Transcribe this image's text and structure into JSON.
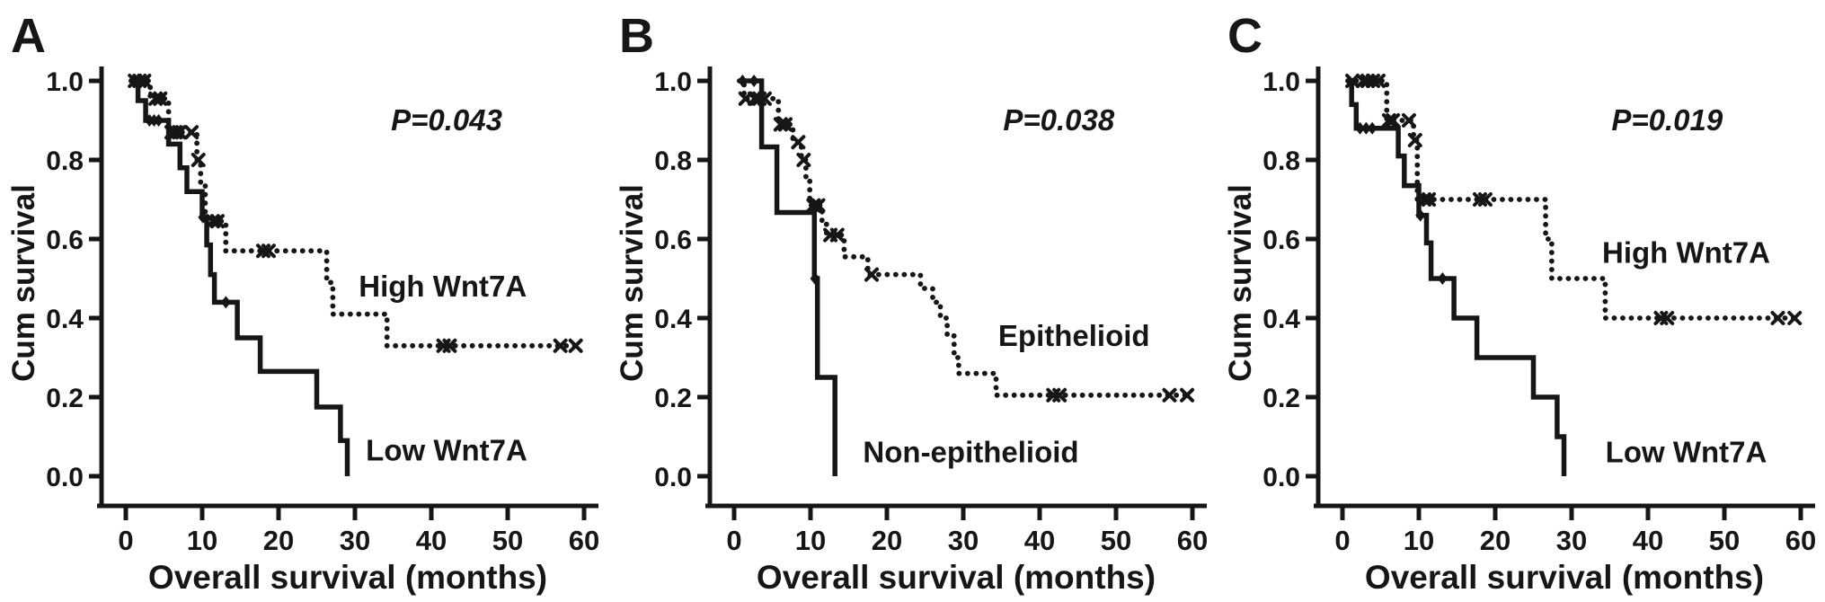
{
  "figure": {
    "background": "#ffffff",
    "ink": "#161616",
    "x_axis_label": "Overall survival (months)",
    "y_axis_label": "Cum survival",
    "x_ticks": [
      0,
      10,
      20,
      30,
      40,
      50,
      60
    ],
    "y_ticks": [
      "0.0",
      "0.2",
      "0.4",
      "0.6",
      "0.8",
      "1.0"
    ]
  },
  "chart_data": [
    {
      "type": "line",
      "panel": "A",
      "p_value": "P=0.043",
      "p_pos": {
        "x": 42,
        "y": 0.9
      },
      "xlabel": "Overall survival (months)",
      "ylabel": "Cum survival",
      "xlim": [
        0,
        60
      ],
      "ylim": [
        0.0,
        1.0
      ],
      "x_ticks": [
        0,
        10,
        20,
        30,
        40,
        50,
        60
      ],
      "y_ticks": [
        0.0,
        0.2,
        0.4,
        0.6,
        0.8,
        1.0
      ],
      "series": [
        {
          "name": "High Wnt7A",
          "line": "dotted",
          "censor_marker": "x",
          "label_pos": {
            "x": 41.5,
            "y": 0.48
          },
          "steps": [
            [
              0.7,
              1.0
            ],
            [
              3.2,
              0.955
            ],
            [
              5.6,
              0.87
            ],
            [
              9.3,
              0.8
            ],
            [
              9.8,
              0.74
            ],
            [
              10.4,
              0.645
            ],
            [
              13.1,
              0.57
            ],
            [
              26.3,
              0.49
            ],
            [
              27.1,
              0.41
            ],
            [
              34.2,
              0.33
            ],
            [
              59.6,
              0.33
            ]
          ],
          "censors": [
            [
              1.2,
              1.0
            ],
            [
              1.8,
              1.0
            ],
            [
              2.4,
              1.0
            ],
            [
              3.9,
              0.955
            ],
            [
              4.5,
              0.955
            ],
            [
              6.0,
              0.87
            ],
            [
              6.5,
              0.87
            ],
            [
              7.0,
              0.87
            ],
            [
              8.6,
              0.87
            ],
            [
              9.5,
              0.8
            ],
            [
              11.4,
              0.645
            ],
            [
              12.0,
              0.645
            ],
            [
              18.0,
              0.57
            ],
            [
              18.7,
              0.57
            ],
            [
              41.6,
              0.33
            ],
            [
              42.4,
              0.33
            ],
            [
              56.9,
              0.33
            ],
            [
              58.9,
              0.33
            ]
          ]
        },
        {
          "name": "Low Wnt7A",
          "line": "solid",
          "censor_marker": "diamond",
          "label_pos": {
            "x": 42,
            "y": 0.065
          },
          "steps": [
            [
              0.7,
              1.0
            ],
            [
              1.6,
              0.95
            ],
            [
              2.6,
              0.9
            ],
            [
              5.6,
              0.84
            ],
            [
              7.1,
              0.78
            ],
            [
              8.0,
              0.72
            ],
            [
              10.0,
              0.655
            ],
            [
              10.6,
              0.585
            ],
            [
              11.1,
              0.51
            ],
            [
              11.6,
              0.44
            ],
            [
              14.6,
              0.35
            ],
            [
              17.6,
              0.265
            ],
            [
              25.0,
              0.175
            ],
            [
              28.1,
              0.09
            ],
            [
              29.0,
              0.0
            ]
          ],
          "censors": [
            [
              3.1,
              0.9
            ],
            [
              3.7,
              0.9
            ],
            [
              4.3,
              0.9
            ],
            [
              10.1,
              0.655
            ],
            [
              13.1,
              0.44
            ]
          ]
        }
      ]
    },
    {
      "type": "line",
      "panel": "B",
      "p_value": "P=0.038",
      "p_pos": {
        "x": 42.5,
        "y": 0.9
      },
      "xlabel": "Overall survival (months)",
      "ylabel": "Cum survival",
      "xlim": [
        0,
        60
      ],
      "ylim": [
        0.0,
        1.0
      ],
      "x_ticks": [
        0,
        10,
        20,
        30,
        40,
        50,
        60
      ],
      "y_ticks": [
        0.0,
        0.2,
        0.4,
        0.6,
        0.8,
        1.0
      ],
      "series": [
        {
          "name": "Epithelioid",
          "line": "dotted",
          "censor_marker": "x",
          "label_pos": {
            "x": 44.5,
            "y": 0.355
          },
          "steps": [
            [
              0.7,
              1.0
            ],
            [
              1.3,
              0.955
            ],
            [
              5.8,
              0.89
            ],
            [
              7.7,
              0.845
            ],
            [
              8.8,
              0.8
            ],
            [
              9.4,
              0.75
            ],
            [
              9.9,
              0.685
            ],
            [
              11.5,
              0.645
            ],
            [
              12.1,
              0.61
            ],
            [
              14.4,
              0.555
            ],
            [
              17.5,
              0.51
            ],
            [
              24.4,
              0.475
            ],
            [
              26.0,
              0.44
            ],
            [
              27.0,
              0.4
            ],
            [
              27.9,
              0.355
            ],
            [
              28.8,
              0.3
            ],
            [
              29.4,
              0.26
            ],
            [
              34.3,
              0.205
            ],
            [
              59.6,
              0.205
            ]
          ],
          "censors": [
            [
              1.5,
              0.955
            ],
            [
              2.7,
              0.955
            ],
            [
              3.3,
              0.955
            ],
            [
              4.0,
              0.955
            ],
            [
              6.1,
              0.89
            ],
            [
              6.7,
              0.89
            ],
            [
              8.4,
              0.845
            ],
            [
              9.1,
              0.8
            ],
            [
              10.4,
              0.685
            ],
            [
              11.0,
              0.685
            ],
            [
              12.6,
              0.61
            ],
            [
              13.5,
              0.61
            ],
            [
              18.0,
              0.51
            ],
            [
              41.8,
              0.205
            ],
            [
              42.6,
              0.205
            ],
            [
              57.0,
              0.205
            ],
            [
              59.3,
              0.205
            ]
          ]
        },
        {
          "name": "Non-epithelioid",
          "line": "solid",
          "censor_marker": "diamond",
          "label_pos": {
            "x": 31,
            "y": 0.06
          },
          "steps": [
            [
              0.7,
              1.0
            ],
            [
              3.6,
              0.833
            ],
            [
              5.6,
              0.667
            ],
            [
              10.5,
              0.5
            ],
            [
              10.9,
              0.25
            ],
            [
              13.2,
              0.0
            ]
          ],
          "censors": [
            [
              1.1,
              1.0
            ],
            [
              2.6,
              1.0
            ],
            [
              10.6,
              0.5
            ]
          ]
        }
      ]
    },
    {
      "type": "line",
      "panel": "C",
      "p_value": "P=0.019",
      "p_pos": {
        "x": 42.5,
        "y": 0.9
      },
      "xlabel": "Overall survival (months)",
      "ylabel": "Cum survival",
      "xlim": [
        0,
        60
      ],
      "ylim": [
        0.0,
        1.0
      ],
      "x_ticks": [
        0,
        10,
        20,
        30,
        40,
        50,
        60
      ],
      "y_ticks": [
        0.0,
        0.2,
        0.4,
        0.6,
        0.8,
        1.0
      ],
      "series": [
        {
          "name": "High Wnt7A",
          "line": "dotted",
          "censor_marker": "x",
          "label_pos": {
            "x": 45,
            "y": 0.565
          },
          "steps": [
            [
              0.7,
              1.0
            ],
            [
              5.8,
              0.9
            ],
            [
              9.3,
              0.85
            ],
            [
              9.8,
              0.7
            ],
            [
              26.6,
              0.6
            ],
            [
              27.4,
              0.5
            ],
            [
              34.4,
              0.4
            ],
            [
              59.6,
              0.4
            ]
          ],
          "censors": [
            [
              1.3,
              1.0
            ],
            [
              2.7,
              1.0
            ],
            [
              3.3,
              1.0
            ],
            [
              4.0,
              1.0
            ],
            [
              4.7,
              1.0
            ],
            [
              6.1,
              0.9
            ],
            [
              6.6,
              0.9
            ],
            [
              8.7,
              0.9
            ],
            [
              9.5,
              0.85
            ],
            [
              10.7,
              0.7
            ],
            [
              11.3,
              0.7
            ],
            [
              18.0,
              0.7
            ],
            [
              18.7,
              0.7
            ],
            [
              41.7,
              0.4
            ],
            [
              42.5,
              0.4
            ],
            [
              57.0,
              0.4
            ],
            [
              59.2,
              0.4
            ]
          ]
        },
        {
          "name": "Low Wnt7A",
          "line": "solid",
          "censor_marker": "diamond",
          "label_pos": {
            "x": 45,
            "y": 0.06
          },
          "steps": [
            [
              0.7,
              1.0
            ],
            [
              1.2,
              0.94
            ],
            [
              1.8,
              0.88
            ],
            [
              7.3,
              0.81
            ],
            [
              8.1,
              0.735
            ],
            [
              10.0,
              0.66
            ],
            [
              11.0,
              0.59
            ],
            [
              11.6,
              0.5
            ],
            [
              14.6,
              0.4
            ],
            [
              17.6,
              0.3
            ],
            [
              25.0,
              0.2
            ],
            [
              28.1,
              0.1
            ],
            [
              29.0,
              0.0
            ]
          ],
          "censors": [
            [
              2.3,
              0.88
            ],
            [
              3.1,
              0.88
            ],
            [
              3.9,
              0.88
            ],
            [
              10.2,
              0.66
            ],
            [
              13.1,
              0.5
            ]
          ]
        }
      ]
    }
  ]
}
